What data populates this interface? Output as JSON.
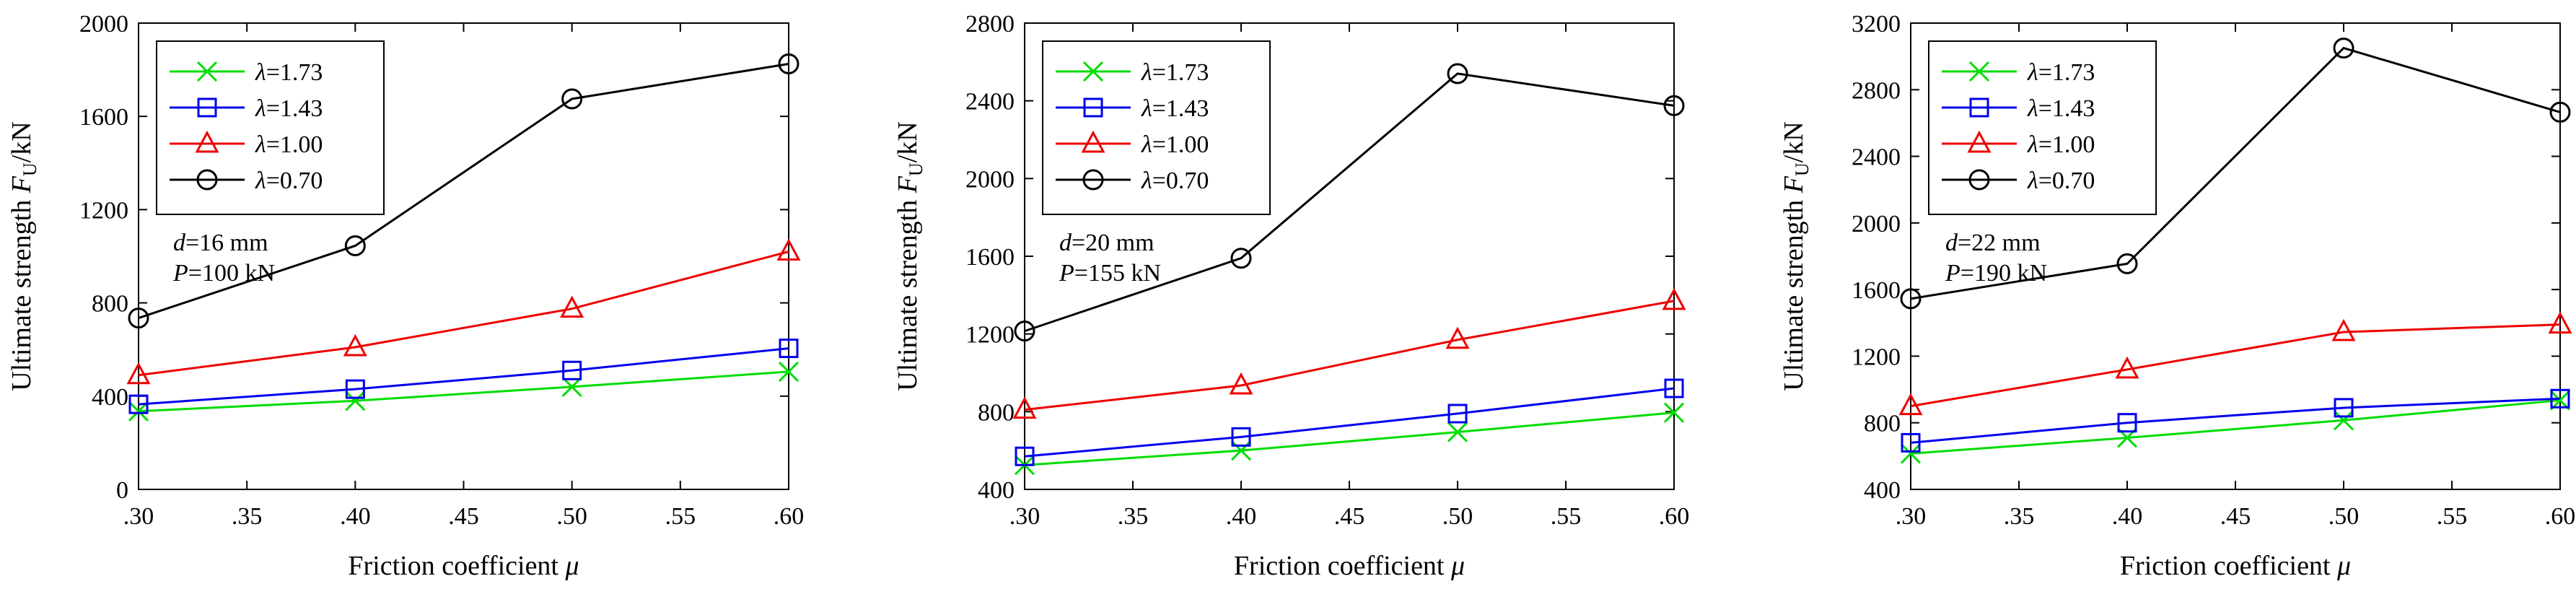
{
  "chart_data": [
    {
      "type": "line",
      "x": [
        0.3,
        0.4,
        0.5,
        0.6
      ],
      "xlim": [
        0.3,
        0.6
      ],
      "ylim": [
        0,
        2000
      ],
      "xticks": [
        ".30",
        ".35",
        ".40",
        ".45",
        ".50",
        ".55",
        ".60"
      ],
      "yticks": [
        "0",
        "400",
        "800",
        "1200",
        "1600",
        "2000"
      ],
      "xlabel": "Friction coefficient μ",
      "ylabel": "Ultimate strength F",
      "ylabel_sub": "U",
      "ylabel_unit": "/kN",
      "legend_position": "top-left",
      "series": [
        {
          "name": "λ=1.73",
          "lambda": "λ",
          "value": "=1.73",
          "color": "#00dd00",
          "marker": "x",
          "values": [
            335,
            380,
            440,
            505
          ]
        },
        {
          "name": "λ=1.43",
          "lambda": "λ",
          "value": "=1.43",
          "color": "#0000ee",
          "marker": "square",
          "values": [
            365,
            430,
            510,
            605
          ]
        },
        {
          "name": "λ=1.00",
          "lambda": "λ",
          "value": "=1.00",
          "color": "#ee0000",
          "marker": "triangle",
          "values": [
            490,
            610,
            775,
            1020
          ]
        },
        {
          "name": "λ=0.70",
          "lambda": "λ",
          "value": "=0.70",
          "color": "#000000",
          "marker": "circle",
          "values": [
            735,
            1045,
            1675,
            1825
          ]
        }
      ],
      "annotation": {
        "line1_var": "d",
        "line1_val": "=16 mm",
        "line2_var": "P",
        "line2_val": "=100 kN"
      }
    },
    {
      "type": "line",
      "x": [
        0.3,
        0.4,
        0.5,
        0.6
      ],
      "xlim": [
        0.3,
        0.6
      ],
      "ylim": [
        400,
        2800
      ],
      "xticks": [
        ".30",
        ".35",
        ".40",
        ".45",
        ".50",
        ".55",
        ".60"
      ],
      "yticks": [
        "400",
        "800",
        "1200",
        "1600",
        "2000",
        "2400",
        "2800"
      ],
      "xlabel": "Friction coefficient μ",
      "ylabel": "Ultimate strength F",
      "ylabel_sub": "U",
      "ylabel_unit": "/kN",
      "legend_position": "top-left",
      "series": [
        {
          "name": "λ=1.73",
          "lambda": "λ",
          "value": "=1.73",
          "color": "#00dd00",
          "marker": "x",
          "values": [
            525,
            600,
            695,
            795
          ]
        },
        {
          "name": "λ=1.43",
          "lambda": "λ",
          "value": "=1.43",
          "color": "#0000ee",
          "marker": "square",
          "values": [
            570,
            670,
            790,
            920
          ]
        },
        {
          "name": "λ=1.00",
          "lambda": "λ",
          "value": "=1.00",
          "color": "#ee0000",
          "marker": "triangle",
          "values": [
            810,
            935,
            1170,
            1370
          ]
        },
        {
          "name": "λ=0.70",
          "lambda": "λ",
          "value": "=0.70",
          "color": "#000000",
          "marker": "circle",
          "values": [
            1215,
            1590,
            2540,
            2375
          ]
        }
      ],
      "annotation": {
        "line1_var": "d",
        "line1_val": "=20 mm",
        "line2_var": "P",
        "line2_val": "=155 kN"
      }
    },
    {
      "type": "line",
      "x": [
        0.3,
        0.4,
        0.5,
        0.6
      ],
      "xlim": [
        0.3,
        0.6
      ],
      "ylim": [
        400,
        3200
      ],
      "xticks": [
        ".30",
        ".35",
        ".40",
        ".45",
        ".50",
        ".55",
        ".60"
      ],
      "yticks": [
        "400",
        "800",
        "1200",
        "1600",
        "2000",
        "2400",
        "2800",
        "3200"
      ],
      "xlabel": "Friction coefficient μ",
      "ylabel": "Ultimate strength F",
      "ylabel_sub": "U",
      "ylabel_unit": "/kN",
      "legend_position": "top-left",
      "series": [
        {
          "name": "λ=1.73",
          "lambda": "λ",
          "value": "=1.73",
          "color": "#00dd00",
          "marker": "x",
          "values": [
            615,
            710,
            815,
            935
          ]
        },
        {
          "name": "λ=1.43",
          "lambda": "λ",
          "value": "=1.43",
          "color": "#0000ee",
          "marker": "square",
          "values": [
            680,
            800,
            890,
            945
          ]
        },
        {
          "name": "λ=1.00",
          "lambda": "λ",
          "value": "=1.00",
          "color": "#ee0000",
          "marker": "triangle",
          "values": [
            900,
            1120,
            1345,
            1390
          ]
        },
        {
          "name": "λ=0.70",
          "lambda": "λ",
          "value": "=0.70",
          "color": "#000000",
          "marker": "circle",
          "values": [
            1545,
            1755,
            3050,
            2665
          ]
        }
      ],
      "annotation": {
        "line1_var": "d",
        "line1_val": "=22 mm",
        "line2_var": "P",
        "line2_val": "=190 kN"
      }
    }
  ]
}
